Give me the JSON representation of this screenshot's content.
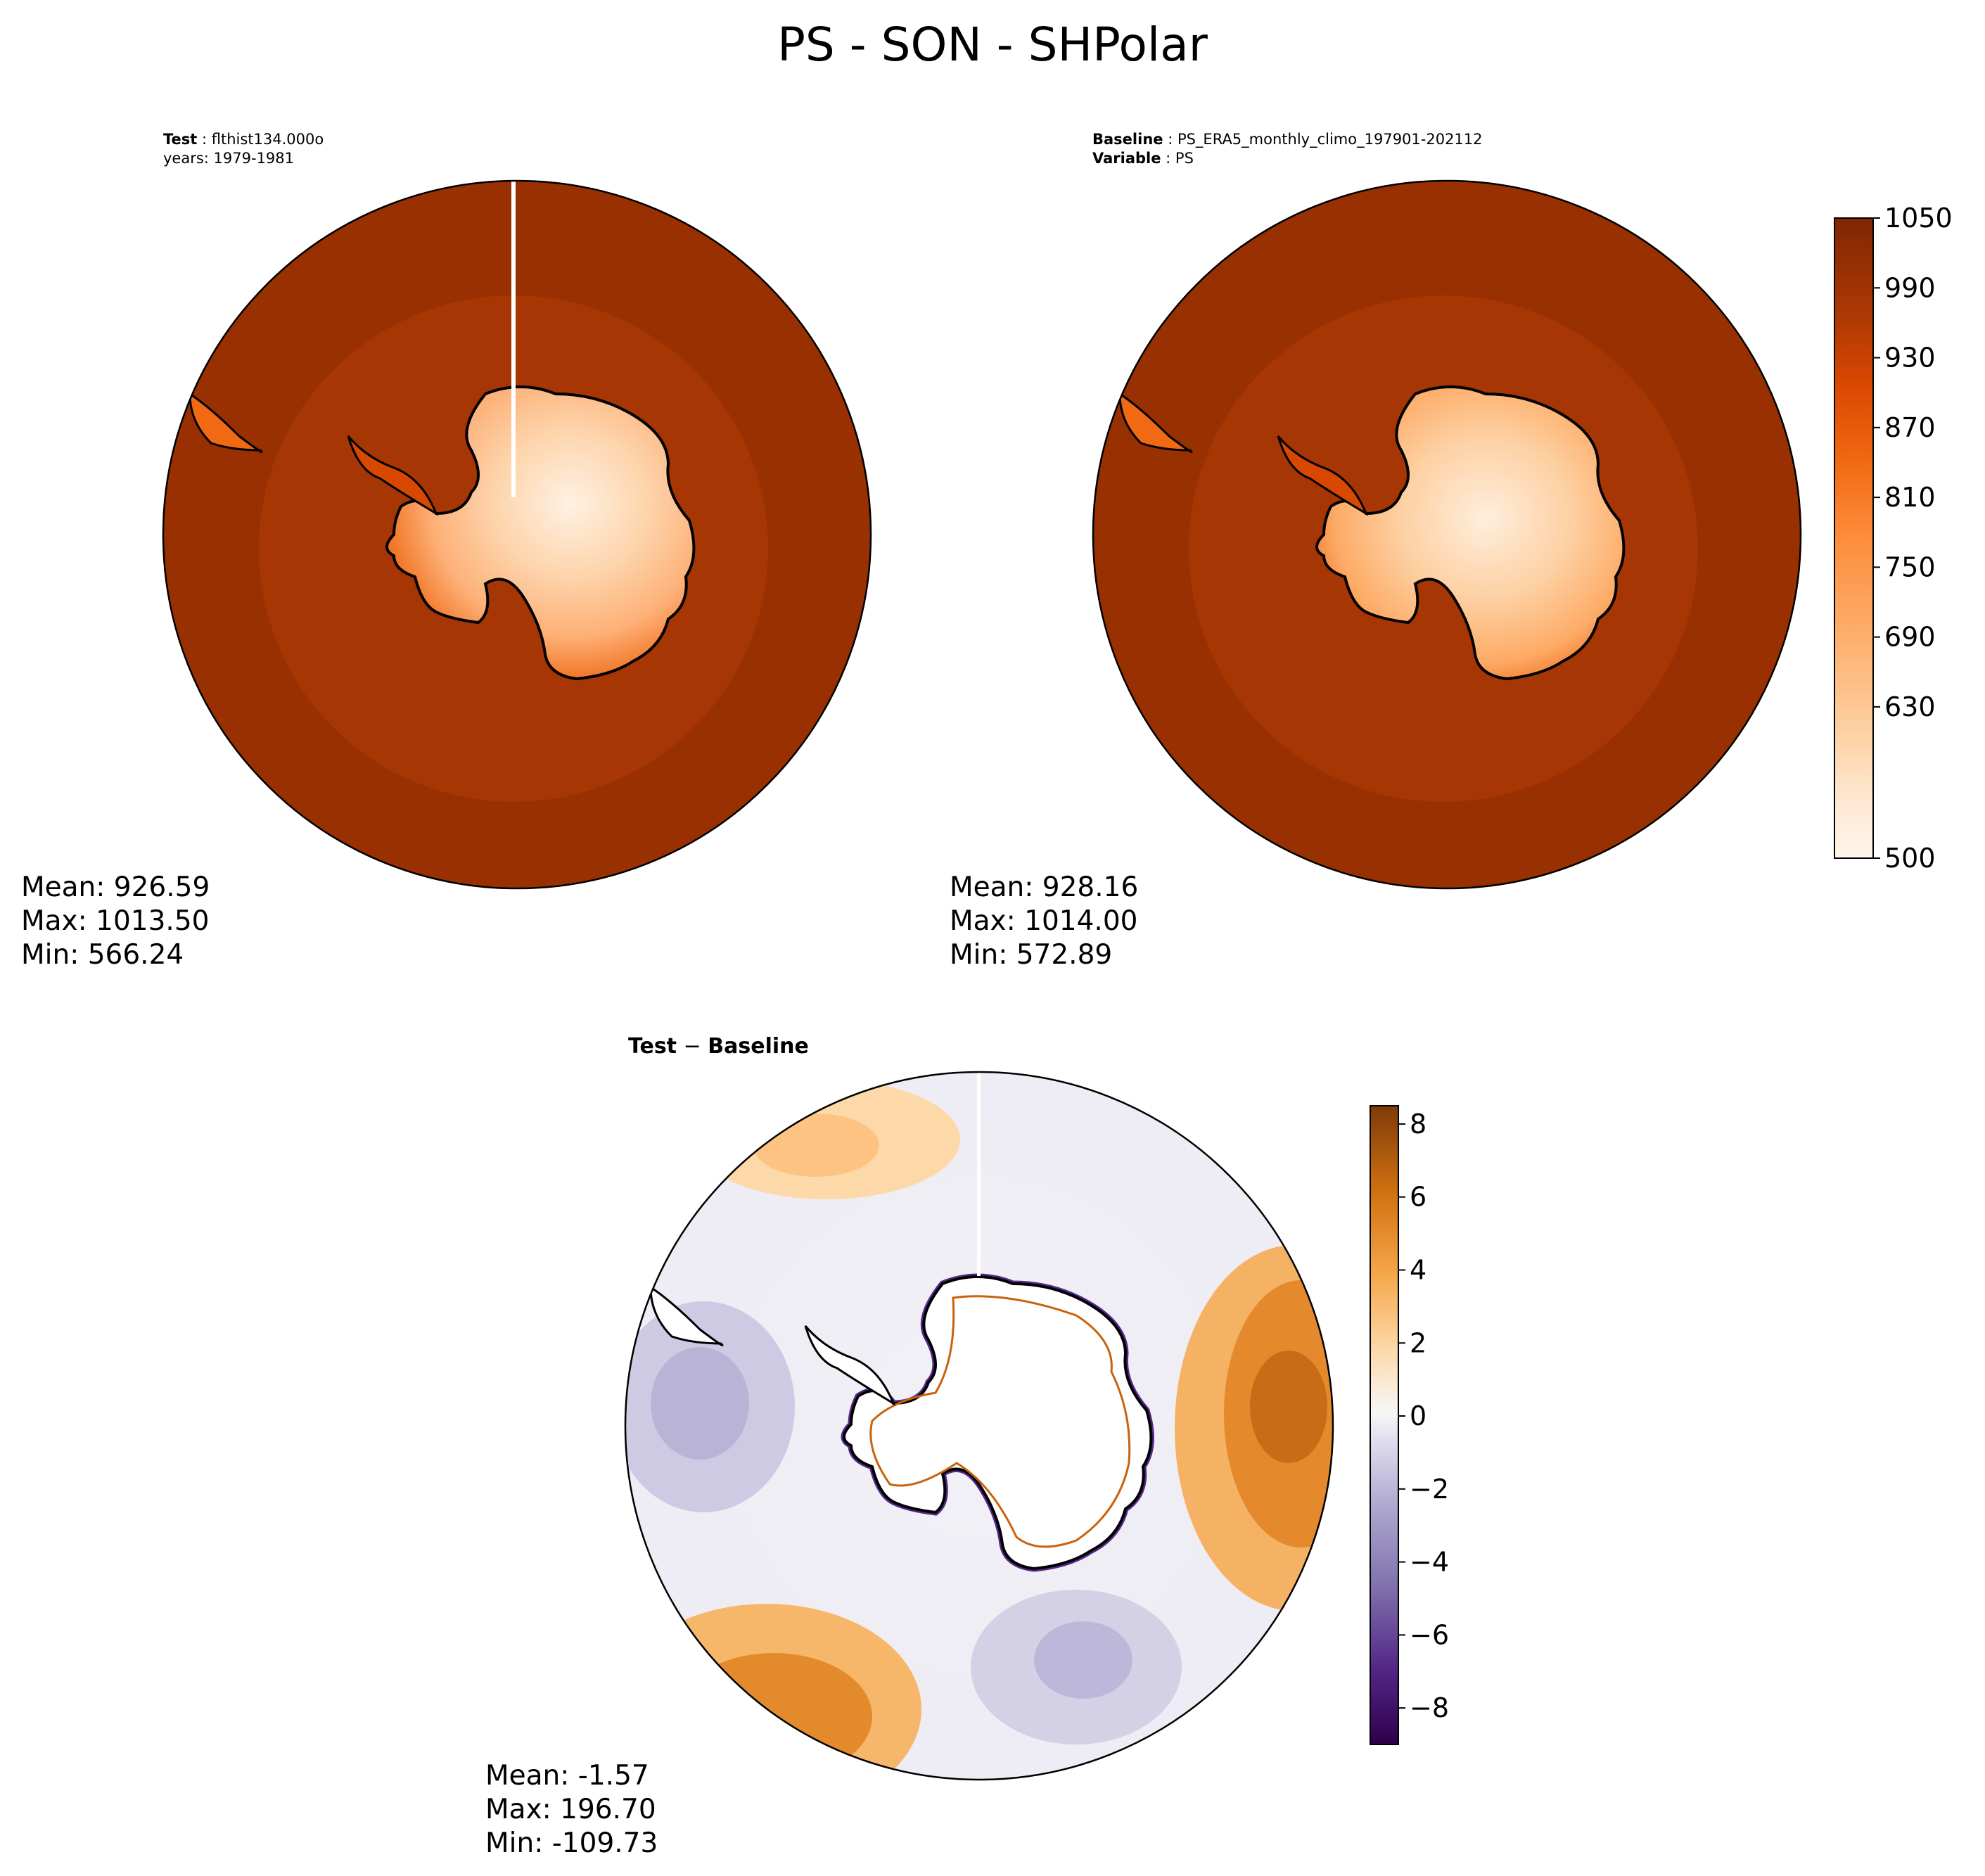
{
  "title": "PS - SON - SHPolar",
  "test_panel": {
    "label_bold": "Test",
    "label_rest": " : flthist134.000o",
    "years": "years: 1979-1981",
    "stats": {
      "mean": "Mean: 926.59",
      "max": "Max: 1013.50",
      "min": "Min: 566.24"
    }
  },
  "baseline_panel": {
    "baseline_bold": "Baseline",
    "baseline_rest": " : PS_ERA5_monthly_climo_197901-202112",
    "variable_bold": "Variable",
    "variable_rest": " : PS",
    "stats": {
      "mean": "Mean: 928.16",
      "max": "Max: 1014.00",
      "min": "Min: 572.89"
    }
  },
  "diff_panel": {
    "title_test": "Test",
    "title_minus": " − ",
    "title_base": "Baseline",
    "stats": {
      "mean": "Mean: -1.57",
      "max": "Max: 196.70",
      "min": "Min: -109.73"
    }
  },
  "colors": {
    "ocean_outer": "#983002",
    "ocean_inner": "#a63603",
    "coast": "#000000",
    "ps_scale": [
      "#fff5eb",
      "#fee6ce",
      "#fdd0a2",
      "#fdae6b",
      "#fd8d3c",
      "#f16913",
      "#d94801",
      "#b03a04",
      "#983002",
      "#7f2704"
    ],
    "diff_neg": "#2d004b",
    "diff_pos": "#7f3b08"
  },
  "chart_data": [
    {
      "type": "heatmap",
      "projection": "south-polar-stereographic",
      "variable": "PS",
      "panel": "test",
      "stats": {
        "mean": 926.59,
        "max": 1013.5,
        "min": 566.24
      }
    },
    {
      "type": "heatmap",
      "projection": "south-polar-stereographic",
      "variable": "PS",
      "panel": "baseline",
      "stats": {
        "mean": 928.16,
        "max": 1014.0,
        "min": 572.89
      },
      "colorbar": {
        "range": [
          500,
          1050
        ],
        "ticks": [
          "500",
          "630",
          "690",
          "750",
          "810",
          "870",
          "930",
          "990",
          "1050"
        ]
      }
    },
    {
      "type": "heatmap",
      "projection": "south-polar-stereographic",
      "variable": "PS difference",
      "panel": "test-minus-baseline",
      "stats": {
        "mean": -1.57,
        "max": 196.7,
        "min": -109.73
      },
      "colorbar": {
        "range": [
          -9,
          8.5
        ],
        "ticks": [
          "−8",
          "−6",
          "−4",
          "−2",
          "0",
          "2",
          "4",
          "6",
          "8"
        ]
      }
    }
  ]
}
